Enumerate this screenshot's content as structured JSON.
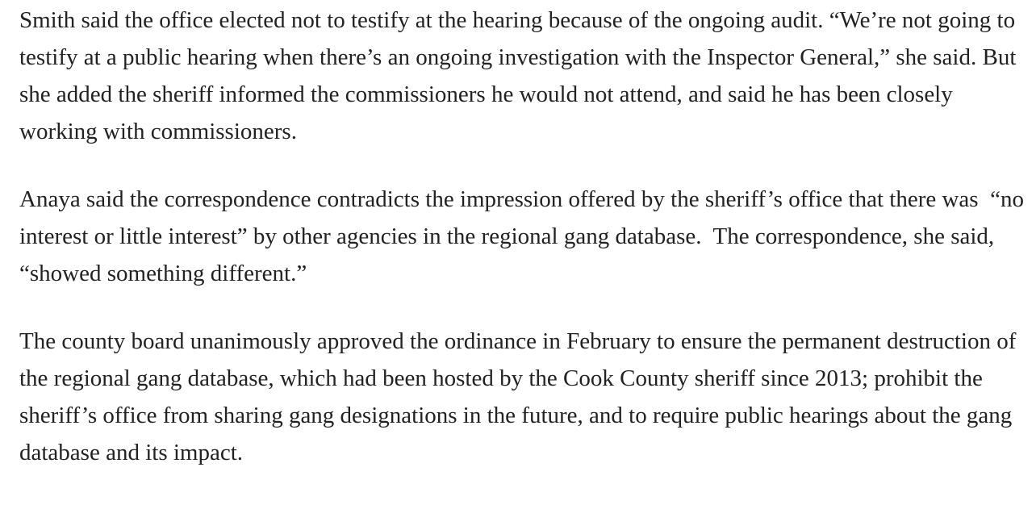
{
  "article": {
    "paragraphs": [
      "Smith said the office elected not to testify at the hearing because of the ongoing audit. “We’re not going to testify at a public hearing when there’s an ongoing investigation with the Inspector General,” she said. But she added the sheriff informed the commissioners he would not attend, and said he has been closely working with commissioners.",
      "Anaya said the correspondence contradicts the impression offered by the sheriff’s office that there was  “no interest or little interest” by other agencies in the regional gang database.  The correspondence, she said, “showed something different.”",
      "The county board unanimously approved the ordinance in February to ensure the permanent destruction of the regional gang database, which had been hosted by the Cook County sheriff since 2013; prohibit the sheriff’s office from sharing gang designations in the future, and to require public hearings about the gang database and its impact."
    ]
  }
}
